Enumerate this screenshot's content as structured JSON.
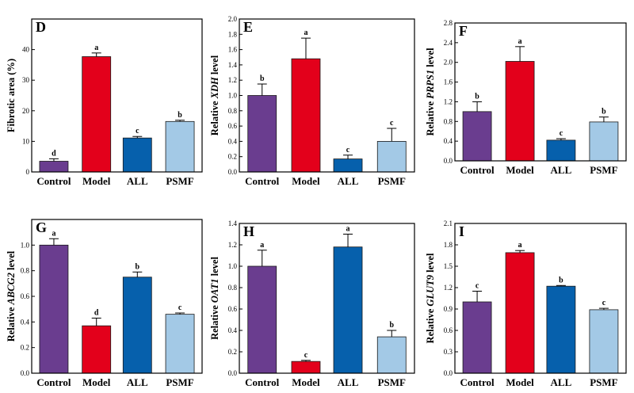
{
  "colors": {
    "Control": "#6a3d8f",
    "Model": "#e3001b",
    "ALL": "#0660ac",
    "PSMF": "#a3c9e6",
    "axis": "#000000"
  },
  "chart_data": [
    {
      "type": "bar",
      "panel": "D",
      "categories": [
        "Control",
        "Model",
        "ALL",
        "PSMF"
      ],
      "values": [
        3.5,
        37.7,
        11.1,
        16.5
      ],
      "errors": [
        0.8,
        1.2,
        0.5,
        0.4
      ],
      "significance": [
        "d",
        "a",
        "c",
        "b"
      ],
      "ylabel_prefix": "Fibrotic area (%)",
      "ylabel_italic": "",
      "ylabel_suffix": "",
      "ylim": [
        0,
        50
      ],
      "yticks": [
        0,
        10,
        20,
        30,
        40,
        50
      ],
      "ytick_labels": [
        "0",
        "10",
        "20",
        "30",
        "40",
        ""
      ]
    },
    {
      "type": "bar",
      "panel": "E",
      "categories": [
        "Control",
        "Model",
        "ALL",
        "PSMF"
      ],
      "values": [
        1.0,
        1.48,
        0.17,
        0.4
      ],
      "errors": [
        0.15,
        0.27,
        0.05,
        0.17
      ],
      "significance": [
        "b",
        "a",
        "c",
        "c"
      ],
      "ylabel_prefix": "Relative ",
      "ylabel_italic": "XDH",
      "ylabel_suffix": " level",
      "ylim": [
        0,
        2.0
      ],
      "yticks": [
        0,
        0.2,
        0.4,
        0.6,
        0.8,
        1.0,
        1.2,
        1.4,
        1.6,
        1.8,
        2.0
      ],
      "ytick_labels": [
        "0.0",
        "0.2",
        "0.4",
        "0.6",
        "0.8",
        "1.0",
        "1.2",
        "1.4",
        "1.6",
        "1.8",
        "2.0"
      ]
    },
    {
      "type": "bar",
      "panel": "F",
      "categories": [
        "Control",
        "Model",
        "ALL",
        "PSMF"
      ],
      "values": [
        1.0,
        2.02,
        0.42,
        0.79
      ],
      "errors": [
        0.2,
        0.3,
        0.03,
        0.1
      ],
      "significance": [
        "b",
        "a",
        "c",
        "b"
      ],
      "ylabel_prefix": "Relative ",
      "ylabel_italic": "PRPS1",
      "ylabel_suffix": " level",
      "ylim": [
        0,
        2.8
      ],
      "yticks": [
        0,
        0.4,
        0.8,
        1.2,
        1.6,
        2.0,
        2.4,
        2.8
      ],
      "ytick_labels": [
        "0.0",
        "0.4",
        "0.8",
        "1.2",
        "1.6",
        "2.0",
        "2.4",
        "2.8"
      ]
    },
    {
      "type": "bar",
      "panel": "G",
      "categories": [
        "Control",
        "Model",
        "ALL",
        "PSMF"
      ],
      "values": [
        1.0,
        0.37,
        0.75,
        0.46
      ],
      "errors": [
        0.05,
        0.06,
        0.04,
        0.01
      ],
      "significance": [
        "a",
        "d",
        "b",
        "c"
      ],
      "ylabel_prefix": "Relative ",
      "ylabel_italic": "ABCG2",
      "ylabel_suffix": " level",
      "ylim": [
        0,
        1.2
      ],
      "yticks": [
        0,
        0.2,
        0.4,
        0.6,
        0.8,
        1.0,
        1.2
      ],
      "ytick_labels": [
        "0.0",
        "0.2",
        "0.4",
        "0.6",
        "0.8",
        "1.0",
        ""
      ]
    },
    {
      "type": "bar",
      "panel": "H",
      "categories": [
        "Control",
        "Model",
        "ALL",
        "PSMF"
      ],
      "values": [
        1.0,
        0.11,
        1.18,
        0.34
      ],
      "errors": [
        0.15,
        0.01,
        0.12,
        0.06
      ],
      "significance": [
        "a",
        "c",
        "a",
        "b"
      ],
      "ylabel_prefix": "Relative ",
      "ylabel_italic": "OAT1",
      "ylabel_suffix": " level",
      "ylim": [
        0,
        1.4
      ],
      "yticks": [
        0,
        0.2,
        0.4,
        0.6,
        0.8,
        1.0,
        1.2,
        1.4
      ],
      "ytick_labels": [
        "0.0",
        "0.2",
        "0.4",
        "0.6",
        "0.8",
        "1.0",
        "1.2",
        "1.4"
      ]
    },
    {
      "type": "bar",
      "panel": "I",
      "categories": [
        "Control",
        "Model",
        "ALL",
        "PSMF"
      ],
      "values": [
        1.0,
        1.69,
        1.22,
        0.89
      ],
      "errors": [
        0.15,
        0.03,
        0.01,
        0.02
      ],
      "significance": [
        "c",
        "a",
        "b",
        "c"
      ],
      "ylabel_prefix": "Relative ",
      "ylabel_italic": "GLUT9",
      "ylabel_suffix": " level",
      "ylim": [
        0,
        2.1
      ],
      "yticks": [
        0,
        0.3,
        0.6,
        0.9,
        1.2,
        1.5,
        1.8,
        2.1
      ],
      "ytick_labels": [
        "0.0",
        "0.3",
        "0.6",
        "0.9",
        "1.2",
        "1.5",
        "1.8",
        "2.1"
      ]
    }
  ]
}
